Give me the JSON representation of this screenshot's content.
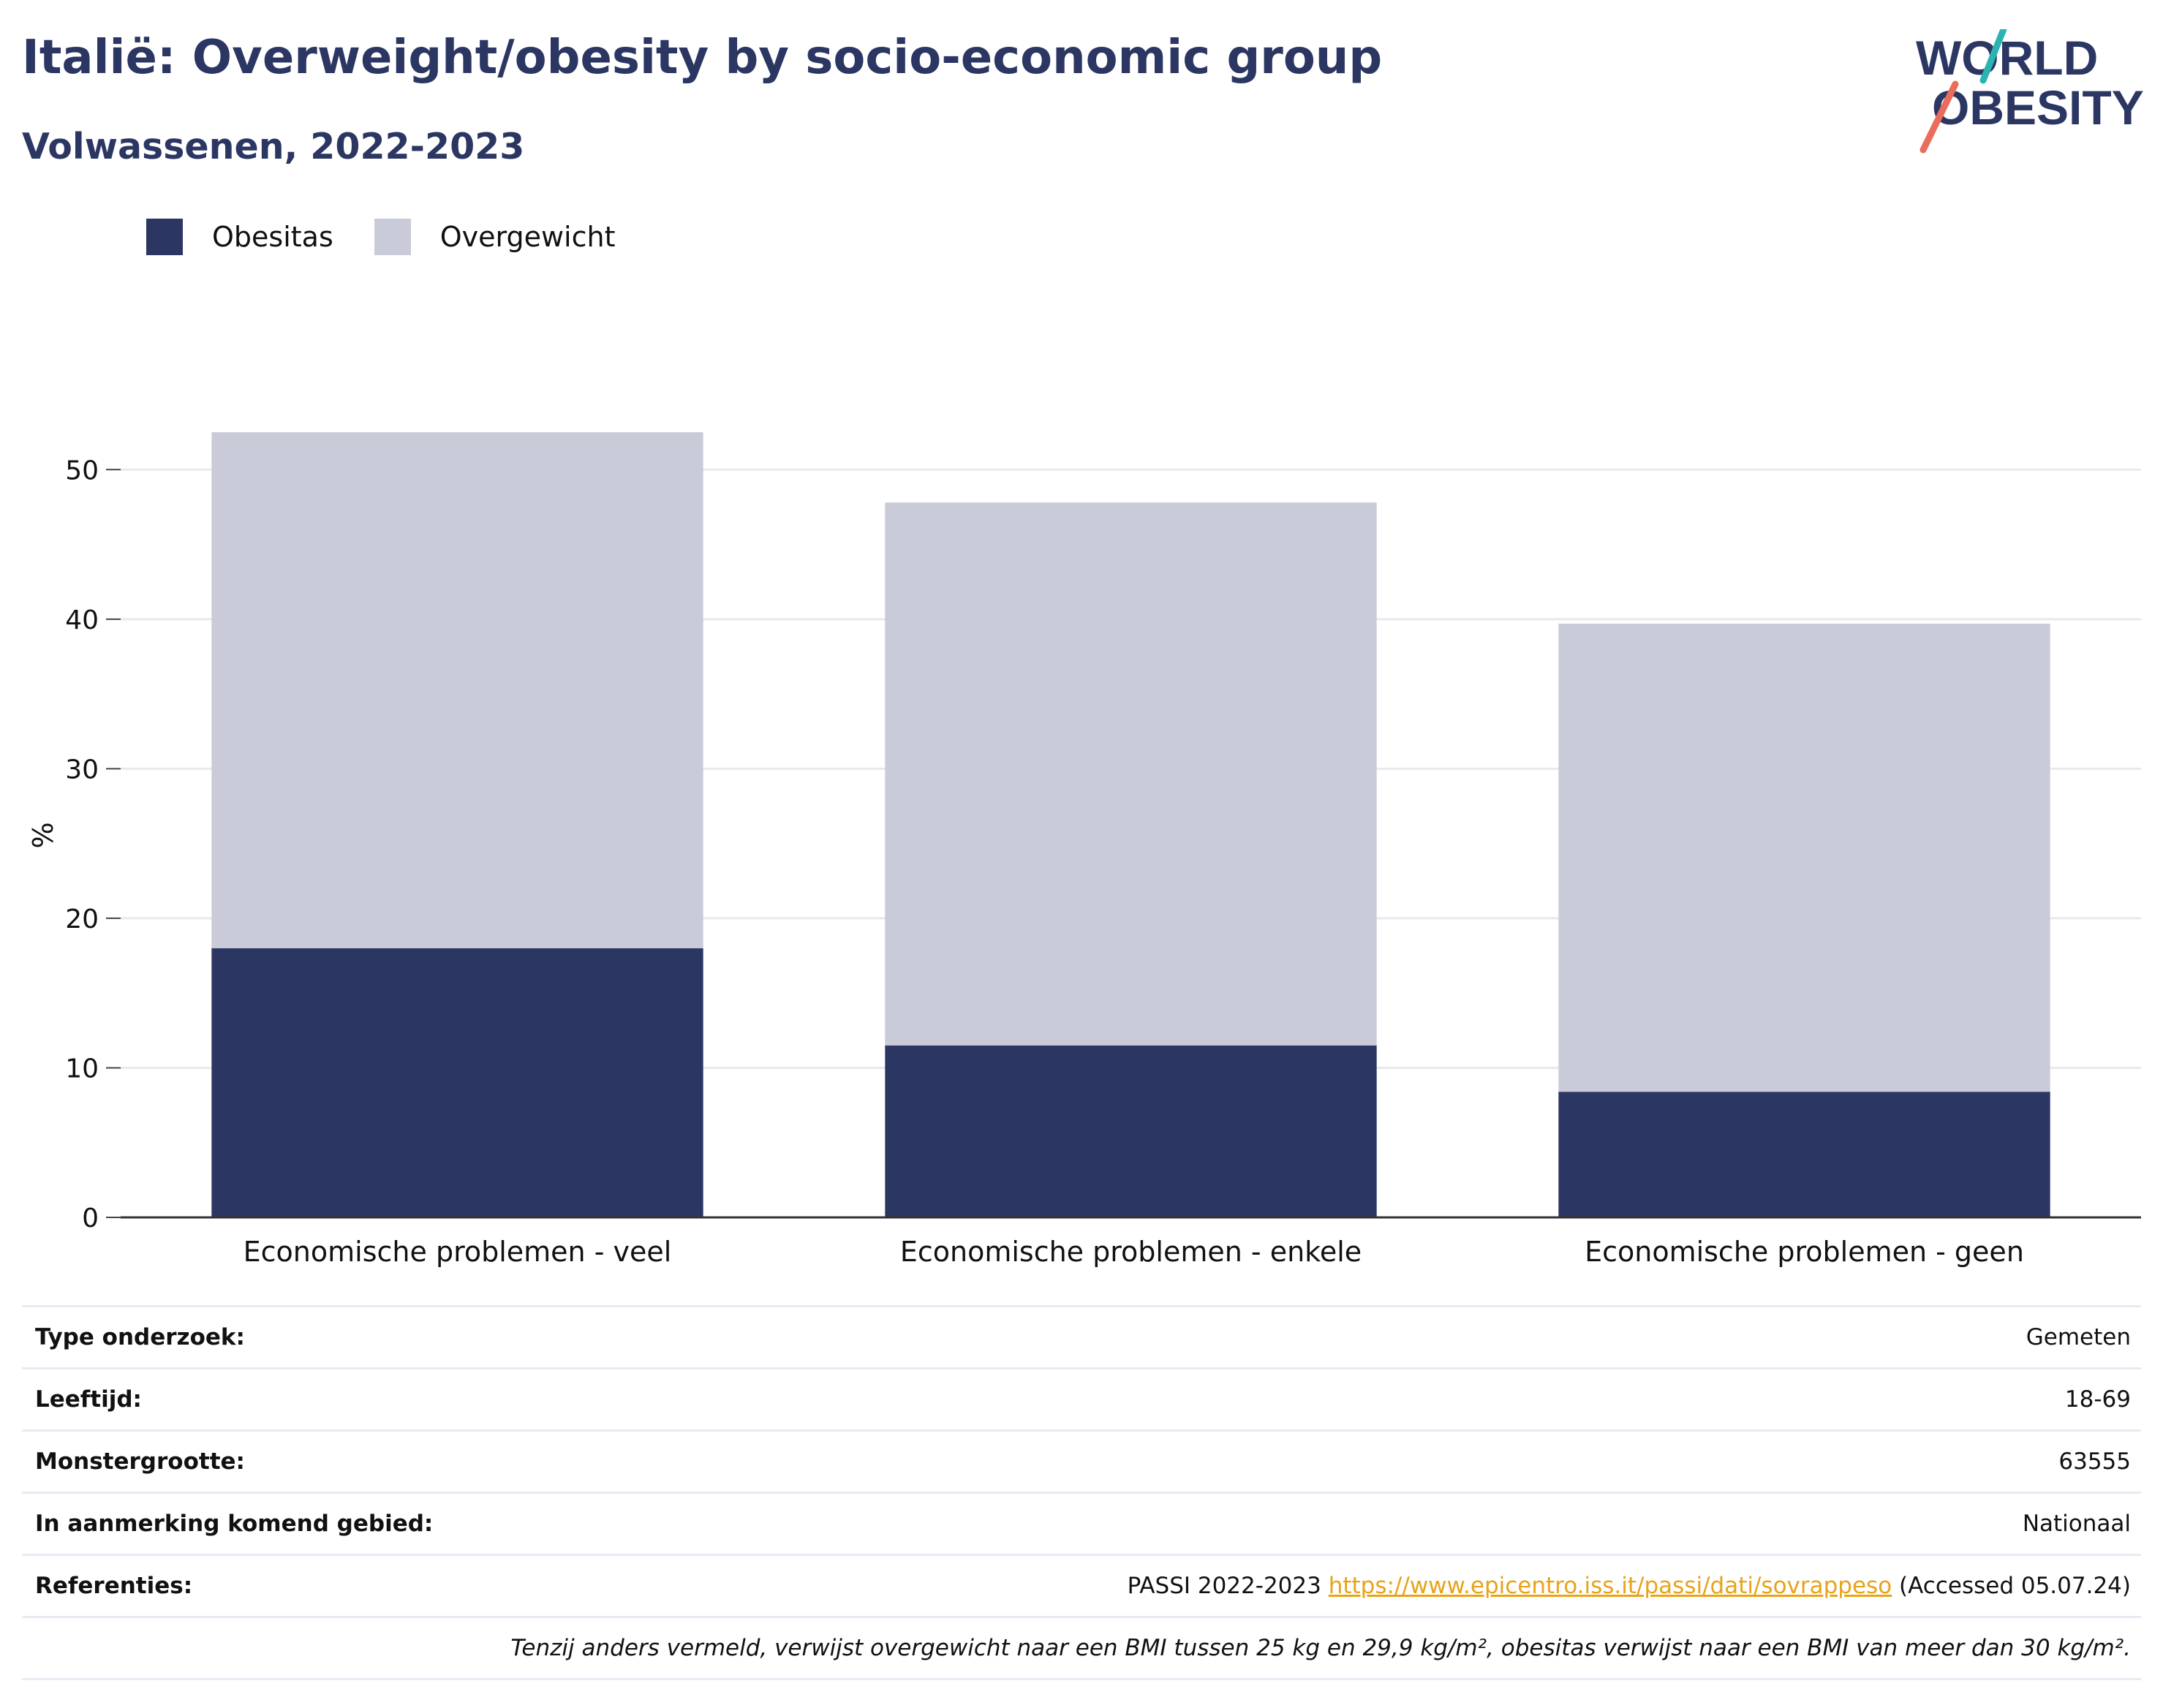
{
  "header": {
    "title": "Italië: Overweight/obesity by socio-economic group",
    "subtitle": "Volwassenen, 2022-2023",
    "logo_text_line1": "WORLD",
    "logo_text_line2": "OBESITY"
  },
  "legend": {
    "items": [
      {
        "label": "Obesitas",
        "color": "#2b3663"
      },
      {
        "label": "Overgewicht",
        "color": "#c9ccd8"
      }
    ]
  },
  "chart_data": {
    "type": "bar",
    "stacked": true,
    "categories": [
      "Economische problemen - veel",
      "Economische problemen - enkele",
      "Economische problemen - geen"
    ],
    "series": [
      {
        "name": "Obesitas",
        "color": "#2b3663",
        "values": [
          18.0,
          11.5,
          8.4
        ]
      },
      {
        "name": "Overgewicht",
        "color": "#c9ccd8",
        "values": [
          34.5,
          36.3,
          31.3
        ]
      }
    ],
    "ylabel": "%",
    "xlabel": "",
    "ylim": [
      0,
      55
    ],
    "yticks": [
      0,
      10,
      20,
      30,
      40,
      50
    ],
    "grid": true,
    "legend_position": "top-left"
  },
  "info": {
    "rows": [
      {
        "label": "Type onderzoek:",
        "value": "Gemeten"
      },
      {
        "label": "Leeftijd:",
        "value": "18-69"
      },
      {
        "label": "Monstergrootte:",
        "value": "63555"
      },
      {
        "label": "In aanmerking komend gebied:",
        "value": "Nationaal"
      }
    ],
    "references": {
      "label": "Referenties:",
      "prefix": "PASSI 2022-2023",
      "link": "https://www.epicentro.iss.it/passi/dati/sovrappeso",
      "suffix": "(Accessed 05.07.24)"
    },
    "note": "Tenzij anders vermeld, verwijst overgewicht naar een BMI tussen 25 kg en 29,9 kg/m², obesitas verwijst naar een BMI van meer dan 30 kg/m²."
  },
  "colors": {
    "brand_navy": "#2b3663",
    "overweight_gray": "#c9ccd8",
    "link_orange": "#e8a317",
    "logo_teal": "#2ab3b1",
    "logo_coral": "#ea6c5a"
  }
}
